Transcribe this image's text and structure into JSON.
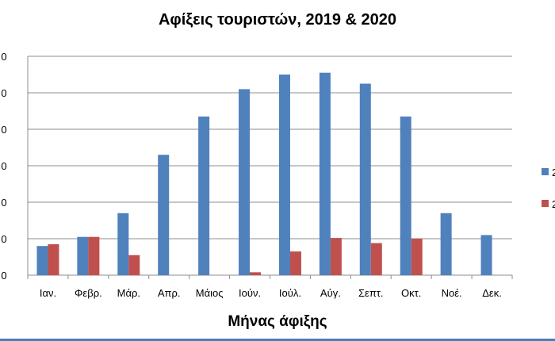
{
  "chart_data": {
    "type": "bar",
    "title": "Αφίξεις τουριστών, 2019 & 2020",
    "xlabel": "Μήνας άφιξης",
    "ylabel": "",
    "categories": [
      "Ιαν.",
      "Φεβρ.",
      "Μάρ.",
      "Απρ.",
      "Μάιος",
      "Ιούν.",
      "Ιούλ.",
      "Αύγ.",
      "Σεπτ.",
      "Οκτ.",
      "Νοέ.",
      "Δεκ."
    ],
    "ylim": [
      0,
      6
    ],
    "yticks_visible": [
      "0",
      "0",
      "0",
      "0",
      "0",
      "0",
      "0"
    ],
    "series": [
      {
        "name": "2",
        "color": "#4f81bd",
        "values": [
          0.8,
          1.05,
          1.7,
          3.3,
          4.35,
          5.1,
          5.5,
          5.55,
          5.25,
          4.35,
          1.7,
          1.1
        ]
      },
      {
        "name": "2",
        "color": "#c0504d",
        "values": [
          0.85,
          1.05,
          0.55,
          0.0,
          0.0,
          0.08,
          0.65,
          1.02,
          0.88,
          1.0,
          0.0,
          0.0
        ]
      }
    ],
    "grid": true,
    "legend_position": "right"
  }
}
